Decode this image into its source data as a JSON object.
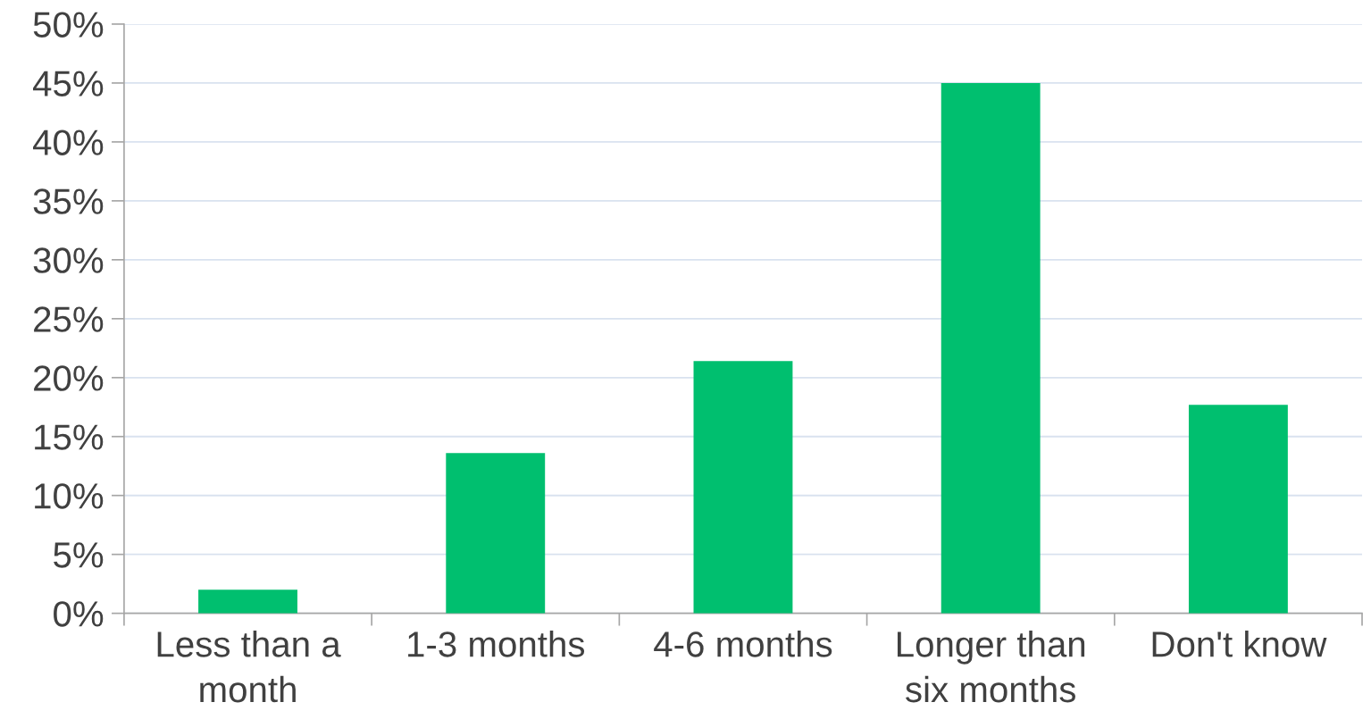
{
  "chart_data": {
    "type": "bar",
    "categories": [
      "Less than a month",
      "1-3 months",
      "4-6 months",
      "Longer than six months",
      "Don't know"
    ],
    "values": [
      2.0,
      13.6,
      21.4,
      45.0,
      17.7
    ],
    "color": "#00bf6f",
    "ylim": [
      0,
      50
    ],
    "yticks": [
      {
        "value": 0,
        "label": "0%"
      },
      {
        "value": 5,
        "label": "5%"
      },
      {
        "value": 10,
        "label": "10%"
      },
      {
        "value": 15,
        "label": "15%"
      },
      {
        "value": 20,
        "label": "20%"
      },
      {
        "value": 25,
        "label": "25%"
      },
      {
        "value": 30,
        "label": "30%"
      },
      {
        "value": 35,
        "label": "35%"
      },
      {
        "value": 40,
        "label": "40%"
      },
      {
        "value": 45,
        "label": "45%"
      },
      {
        "value": 50,
        "label": "50%"
      }
    ],
    "grid": "y",
    "legend": false
  }
}
